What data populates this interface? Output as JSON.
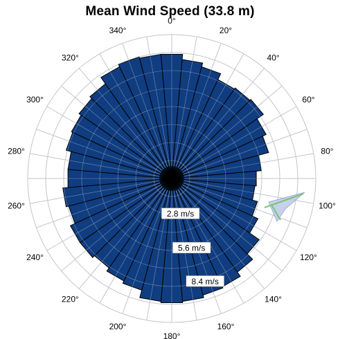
{
  "chart_data": {
    "type": "polar-bar",
    "title": "Mean Wind Speed (33.8 m)",
    "unit": "m/s",
    "radial_max": 11.2,
    "radial_rings": [
      1.4,
      2.8,
      4.2,
      5.6,
      7.0,
      8.4,
      9.8,
      11.2
    ],
    "radial_labels": [
      {
        "value": 2.8,
        "text": "2.8 m/s",
        "angle": 166
      },
      {
        "value": 5.6,
        "text": "5.6 m/s",
        "angle": 164
      },
      {
        "value": 8.4,
        "text": "8.4 m/s",
        "angle": 162
      }
    ],
    "angle_ticks": [
      {
        "deg": 0,
        "text": "0°"
      },
      {
        "deg": 20,
        "text": "20°"
      },
      {
        "deg": 40,
        "text": "40°"
      },
      {
        "deg": 60,
        "text": "60°"
      },
      {
        "deg": 80,
        "text": "80°"
      },
      {
        "deg": 100,
        "text": "100°"
      },
      {
        "deg": 120,
        "text": "120°"
      },
      {
        "deg": 140,
        "text": "140°"
      },
      {
        "deg": 160,
        "text": "160°"
      },
      {
        "deg": 180,
        "text": "180°"
      },
      {
        "deg": 200,
        "text": "200°"
      },
      {
        "deg": 220,
        "text": "220°"
      },
      {
        "deg": 240,
        "text": "240°"
      },
      {
        "deg": 260,
        "text": "260°"
      },
      {
        "deg": 280,
        "text": "280°"
      },
      {
        "deg": 300,
        "text": "300°"
      },
      {
        "deg": 320,
        "text": "320°"
      },
      {
        "deg": 340,
        "text": "340°"
      }
    ],
    "sector_width_deg": 10,
    "directions": [
      0,
      10,
      20,
      30,
      40,
      50,
      60,
      70,
      80,
      90,
      100,
      110,
      120,
      130,
      140,
      150,
      160,
      170,
      180,
      190,
      200,
      210,
      220,
      230,
      240,
      250,
      260,
      270,
      280,
      290,
      300,
      310,
      320,
      330,
      340,
      350
    ],
    "values": [
      9.7,
      9.3,
      9.0,
      8.5,
      8.6,
      8.7,
      8.1,
      7.8,
      7.0,
      6.6,
      6.5,
      6.9,
      7.4,
      8.3,
      8.9,
      9.3,
      9.4,
      9.6,
      9.7,
      9.6,
      9.0,
      8.8,
      8.5,
      8.7,
      8.7,
      8.3,
      8.5,
      8.1,
      8.1,
      8.5,
      8.6,
      8.8,
      9.0,
      9.6,
      9.8,
      9.7
    ],
    "bar_color": "#103d80",
    "grid": true
  },
  "colors": {
    "background": "#ffffff",
    "grid": "#c8c8c8",
    "bar": "#103d80",
    "bar_edge": "#000000",
    "text": "#000000"
  }
}
